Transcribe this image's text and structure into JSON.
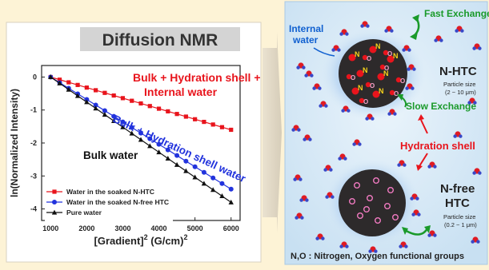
{
  "chart_data": {
    "type": "scatter",
    "title": "Diffusion NMR",
    "xlabel": "[Gradient]",
    "xlabel_sup1": "2",
    "xlabel_unit": " (G/cm)",
    "xlabel_sup2": "2",
    "ylabel": "ln(Normalized Intensity)",
    "xlim": [
      750,
      6250
    ],
    "ylim": [
      -4.35,
      0.35
    ],
    "x_ticks": [
      1000,
      2000,
      3000,
      4000,
      5000,
      6000
    ],
    "y_ticks": [
      0,
      -1,
      -2,
      -3,
      -4
    ],
    "x": [
      1000,
      1250,
      1500,
      1750,
      2000,
      2250,
      2500,
      2750,
      3000,
      3250,
      3500,
      3750,
      4000,
      4250,
      4500,
      4750,
      5000,
      5250,
      5500,
      5750,
      6000
    ],
    "series": [
      {
        "name": "Water in the soaked N-HTC",
        "color": "#e8141c",
        "marker": "square",
        "values": [
          0,
          -0.08,
          -0.16,
          -0.24,
          -0.32,
          -0.4,
          -0.48,
          -0.56,
          -0.64,
          -0.72,
          -0.8,
          -0.88,
          -0.96,
          -1.04,
          -1.12,
          -1.2,
          -1.28,
          -1.36,
          -1.44,
          -1.52,
          -1.6
        ]
      },
      {
        "name": "Water in the soaked N-free HTC",
        "color": "#2233dd",
        "marker": "circle",
        "values": [
          0,
          -0.17,
          -0.34,
          -0.51,
          -0.68,
          -0.85,
          -1.02,
          -1.19,
          -1.36,
          -1.53,
          -1.7,
          -1.87,
          -2.04,
          -2.21,
          -2.38,
          -2.55,
          -2.72,
          -2.89,
          -3.06,
          -3.23,
          -3.4
        ]
      },
      {
        "name": "Pure water",
        "color": "#111111",
        "marker": "triangle",
        "values": [
          0,
          -0.19,
          -0.38,
          -0.57,
          -0.76,
          -0.95,
          -1.14,
          -1.33,
          -1.52,
          -1.71,
          -1.9,
          -2.09,
          -2.28,
          -2.47,
          -2.66,
          -2.85,
          -3.04,
          -3.23,
          -3.42,
          -3.61,
          -3.8
        ]
      }
    ],
    "annotations": {
      "red_line1": "Bulk + Hydration shell +",
      "red_line2": "Internal water",
      "blue": "Bulk + Hydration shell water",
      "black": "Bulk water"
    }
  },
  "diagram": {
    "internal_water_line1": "Internal",
    "internal_water_line2": "water",
    "fast_exchange": "Fast Exchange",
    "slow_exchange": "Slow Exchange",
    "hydration_shell": "Hydration shell",
    "nhtc_title": "N-HTC",
    "nhtc_size_line1": "Particle size",
    "nhtc_size_line2": "(2 ~ 10 μm)",
    "nfree_title_line1": "N-free",
    "nfree_title_line2": "HTC",
    "nfree_size_line1": "Particle size",
    "nfree_size_line2": "(0.2 ~ 1 μm)",
    "footer": "N,O : Nitrogen, Oxygen functional groups",
    "n_letter": "N",
    "o_letter": "O",
    "colors": {
      "accent_green": "#1a9a2a",
      "accent_red": "#e8141c",
      "accent_blue": "#1060d0",
      "panel_bg": "#d7e9f6"
    }
  }
}
